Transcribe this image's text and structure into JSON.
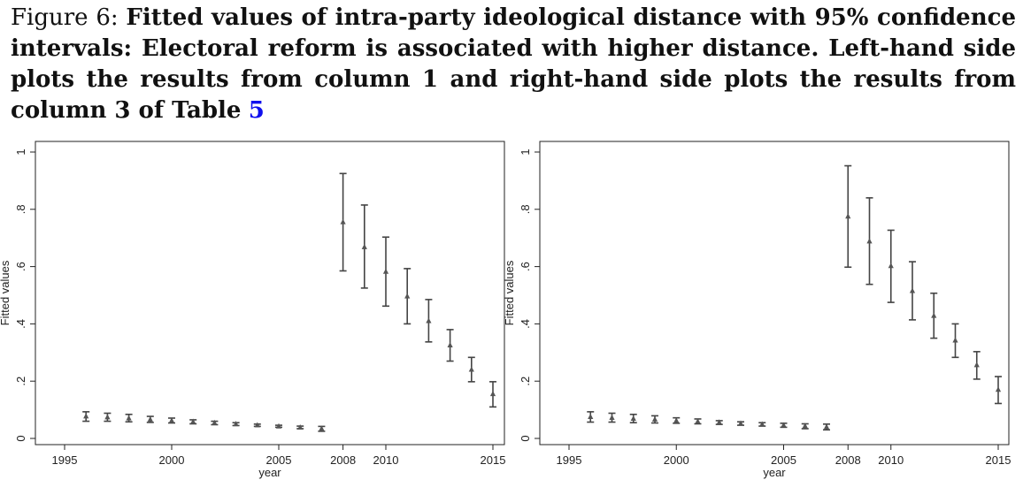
{
  "caption": {
    "label": "Figure 6:",
    "text": "Fitted values of intra-party ideological distance with 95% confidence intervals: Electoral reform is associated with higher distance. Left-hand side plots the results from column 1 and right-hand side plots the results from column 3 of Table",
    "ref": "5"
  },
  "chart_data": [
    {
      "type": "scatter",
      "error_bars": true,
      "xlabel": "year",
      "ylabel": "Fitted values",
      "xticks": [
        "1995",
        "2000",
        "2005",
        "2008",
        "2010",
        "2015"
      ],
      "xtick_values": [
        1995,
        2000,
        2005,
        2008,
        2010,
        2015
      ],
      "yticks": [
        "0",
        ".2",
        ".4",
        ".6",
        ".8",
        "1"
      ],
      "ytick_values": [
        0,
        0.2,
        0.4,
        0.6,
        0.8,
        1
      ],
      "xlim": [
        1995,
        2015
      ],
      "ylim": [
        0,
        1
      ],
      "grid": false,
      "x": [
        1996,
        1997,
        1998,
        1999,
        2000,
        2001,
        2002,
        2003,
        2004,
        2005,
        2006,
        2007,
        2008,
        2009,
        2010,
        2011,
        2012,
        2013,
        2014,
        2015
      ],
      "y": [
        0.077,
        0.074,
        0.07,
        0.066,
        0.062,
        0.058,
        0.054,
        0.05,
        0.046,
        0.042,
        0.038,
        0.034,
        0.755,
        0.668,
        0.582,
        0.496,
        0.41,
        0.325,
        0.24,
        0.155
      ],
      "lower": [
        0.06,
        0.06,
        0.058,
        0.056,
        0.054,
        0.051,
        0.048,
        0.045,
        0.042,
        0.039,
        0.034,
        0.025,
        0.585,
        0.525,
        0.462,
        0.4,
        0.337,
        0.27,
        0.198,
        0.11
      ],
      "upper": [
        0.093,
        0.088,
        0.084,
        0.077,
        0.071,
        0.065,
        0.06,
        0.055,
        0.05,
        0.046,
        0.043,
        0.042,
        0.925,
        0.815,
        0.703,
        0.593,
        0.485,
        0.38,
        0.283,
        0.198
      ]
    },
    {
      "type": "scatter",
      "error_bars": true,
      "xlabel": "year",
      "ylabel": "Fitted values",
      "xticks": [
        "1995",
        "2000",
        "2005",
        "2008",
        "2010",
        "2015"
      ],
      "xtick_values": [
        1995,
        2000,
        2005,
        2008,
        2010,
        2015
      ],
      "yticks": [
        "0",
        ".2",
        ".4",
        ".6",
        ".8",
        "1"
      ],
      "ytick_values": [
        0,
        0.2,
        0.4,
        0.6,
        0.8,
        1
      ],
      "xlim": [
        1995,
        2015
      ],
      "ylim": [
        0,
        1
      ],
      "grid": false,
      "x": [
        1996,
        1997,
        1998,
        1999,
        2000,
        2001,
        2002,
        2003,
        2004,
        2005,
        2006,
        2007,
        2008,
        2009,
        2010,
        2011,
        2012,
        2013,
        2014,
        2015
      ],
      "y": [
        0.075,
        0.072,
        0.069,
        0.066,
        0.062,
        0.059,
        0.056,
        0.052,
        0.049,
        0.046,
        0.043,
        0.04,
        0.775,
        0.688,
        0.602,
        0.515,
        0.428,
        0.342,
        0.256,
        0.17
      ],
      "lower": [
        0.057,
        0.057,
        0.055,
        0.054,
        0.053,
        0.051,
        0.049,
        0.046,
        0.043,
        0.039,
        0.034,
        0.03,
        0.598,
        0.538,
        0.475,
        0.414,
        0.35,
        0.283,
        0.207,
        0.122
      ],
      "upper": [
        0.093,
        0.088,
        0.084,
        0.079,
        0.072,
        0.068,
        0.062,
        0.058,
        0.055,
        0.053,
        0.051,
        0.05,
        0.952,
        0.84,
        0.727,
        0.617,
        0.507,
        0.4,
        0.303,
        0.216
      ]
    }
  ]
}
